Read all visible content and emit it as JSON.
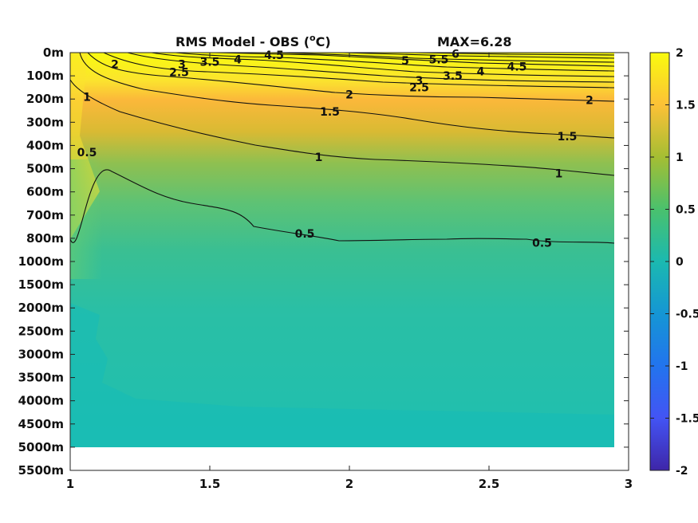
{
  "chart_data": {
    "type": "heatmap",
    "title_left": "RMS Model - OBS (",
    "title_super": "o",
    "title_unit": "C)",
    "title_right": "MAX=6.28",
    "x_ticks": [
      "1",
      "1.5",
      "2",
      "2.5",
      "3"
    ],
    "x_tick_values": [
      1,
      1.5,
      2,
      2.5,
      3
    ],
    "xlim": [
      1,
      3
    ],
    "y_ticks": [
      "0m",
      "100m",
      "200m",
      "300m",
      "400m",
      "500m",
      "600m",
      "700m",
      "800m",
      "1000m",
      "1500m",
      "2000m",
      "2500m",
      "3000m",
      "3500m",
      "4000m",
      "4500m",
      "5000m",
      "5500m"
    ],
    "colorbar_ticks": [
      "2",
      "1.5",
      "1",
      "0.5",
      "0",
      "-0.5",
      "-1",
      "-1.5",
      "-2"
    ],
    "colorbar_values": [
      2,
      1.5,
      1,
      0.5,
      0,
      -0.5,
      -1,
      -1.5,
      -2
    ],
    "clim": [
      -2,
      2
    ],
    "data_x_extent": [
      1,
      2.95
    ],
    "data_bottom_depth_label": "5000m",
    "contour_levels": [
      0.5,
      1,
      1.5,
      2,
      2.5,
      3,
      3.5,
      4,
      4.5,
      5,
      5.5,
      6
    ],
    "contour_labels": [
      {
        "text": "2",
        "x": 1.16,
        "depth_index": 0.5
      },
      {
        "text": "3",
        "x": 1.4,
        "depth_index": 0.5
      },
      {
        "text": "3.5",
        "x": 1.5,
        "depth_index": 0.4
      },
      {
        "text": "4",
        "x": 1.6,
        "depth_index": 0.3
      },
      {
        "text": "4.5",
        "x": 1.73,
        "depth_index": 0.1
      },
      {
        "text": "2.5",
        "x": 1.39,
        "depth_index": 0.85
      },
      {
        "text": "5",
        "x": 2.2,
        "depth_index": 0.35
      },
      {
        "text": "5.5",
        "x": 2.32,
        "depth_index": 0.3
      },
      {
        "text": "6",
        "x": 2.38,
        "depth_index": 0.05
      },
      {
        "text": "3",
        "x": 2.25,
        "depth_index": 1.2
      },
      {
        "text": "3.5",
        "x": 2.37,
        "depth_index": 1.0
      },
      {
        "text": "4",
        "x": 2.47,
        "depth_index": 0.8
      },
      {
        "text": "4.5",
        "x": 2.6,
        "depth_index": 0.6
      },
      {
        "text": "2.5",
        "x": 2.25,
        "depth_index": 1.5
      },
      {
        "text": "2",
        "x": 2.0,
        "depth_index": 1.8
      },
      {
        "text": "2",
        "x": 2.86,
        "depth_index": 2.05
      },
      {
        "text": "1",
        "x": 1.06,
        "depth_index": 1.9
      },
      {
        "text": "1.5",
        "x": 1.93,
        "depth_index": 2.55
      },
      {
        "text": "1.5",
        "x": 2.78,
        "depth_index": 3.6
      },
      {
        "text": "1",
        "x": 1.89,
        "depth_index": 4.5
      },
      {
        "text": "1",
        "x": 2.75,
        "depth_index": 5.2
      },
      {
        "text": "0.5",
        "x": 1.06,
        "depth_index": 4.3
      },
      {
        "text": "0.5",
        "x": 1.84,
        "depth_index": 7.8
      },
      {
        "text": "0.5",
        "x": 2.69,
        "depth_index": 8.2
      }
    ]
  }
}
